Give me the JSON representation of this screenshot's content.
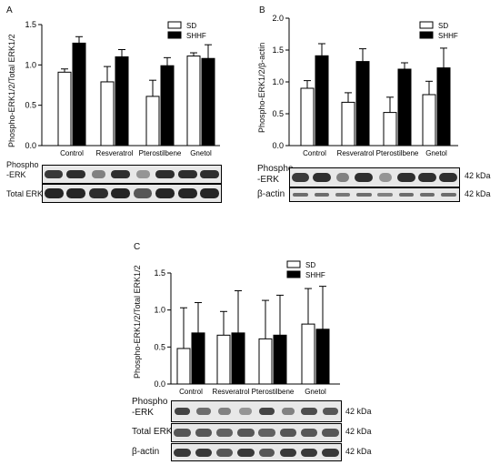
{
  "panels": [
    {
      "id": "A",
      "label": "A",
      "ylabel": "Phospho-ERK1/2/Total ERK1/2",
      "blot_rows": [
        "Phospho\n-ERK",
        "Total ERK"
      ],
      "kda": []
    },
    {
      "id": "B",
      "label": "B",
      "ylabel": "Phospho-ERK1/2/β-actin",
      "blot_rows": [
        "Phospho\n-ERK",
        "β-actin"
      ],
      "kda": [
        "42 kDa",
        "42 kDa"
      ]
    },
    {
      "id": "C",
      "label": "C",
      "ylabel": "Phospho-ERK1/2/Total ERK1/2",
      "blot_rows": [
        "Phospho\n-ERK",
        "Total ERK",
        "β-actin"
      ],
      "kda": [
        "42 kDa",
        "42 kDa",
        "42 kDa"
      ]
    }
  ],
  "chart_data": [
    {
      "type": "bar",
      "panel": "A",
      "categories": [
        "Control",
        "Resveratrol",
        "Pterostilbene",
        "Gnetol"
      ],
      "series": [
        {
          "name": "SD",
          "color": "#ffffff",
          "values": [
            0.91,
            0.79,
            0.61,
            1.11
          ],
          "errors": [
            0.04,
            0.19,
            0.2,
            0.04
          ]
        },
        {
          "name": "SHHF",
          "color": "#000000",
          "values": [
            1.27,
            1.1,
            0.99,
            1.08
          ],
          "errors": [
            0.08,
            0.09,
            0.1,
            0.17
          ]
        }
      ],
      "ylim": [
        0,
        1.5
      ],
      "yticks": [
        "0.0",
        "0.5",
        "1.0",
        "1.5"
      ]
    },
    {
      "type": "bar",
      "panel": "B",
      "categories": [
        "Control",
        "Resveratrol",
        "Pterostilbene",
        "Gnetol"
      ],
      "series": [
        {
          "name": "SD",
          "color": "#ffffff",
          "values": [
            0.9,
            0.68,
            0.52,
            0.8
          ],
          "errors": [
            0.12,
            0.15,
            0.24,
            0.21
          ]
        },
        {
          "name": "SHHF",
          "color": "#000000",
          "values": [
            1.41,
            1.32,
            1.2,
            1.22
          ],
          "errors": [
            0.19,
            0.2,
            0.1,
            0.31
          ]
        }
      ],
      "ylim": [
        0,
        2.0
      ],
      "yticks": [
        "0.0",
        "0.5",
        "1.0",
        "1.5",
        "2.0"
      ]
    },
    {
      "type": "bar",
      "panel": "C",
      "categories": [
        "Control",
        "Resveratrol",
        "Pterostilbene",
        "Gnetol"
      ],
      "series": [
        {
          "name": "SD",
          "color": "#ffffff",
          "values": [
            0.48,
            0.66,
            0.61,
            0.81
          ],
          "errors": [
            0.55,
            0.32,
            0.52,
            0.48
          ]
        },
        {
          "name": "SHHF",
          "color": "#000000",
          "values": [
            0.69,
            0.69,
            0.66,
            0.74
          ],
          "errors": [
            0.41,
            0.57,
            0.54,
            0.58
          ]
        }
      ],
      "ylim": [
        0,
        1.5
      ],
      "yticks": [
        "0.0",
        "0.5",
        "1.0",
        "1.5"
      ]
    }
  ]
}
